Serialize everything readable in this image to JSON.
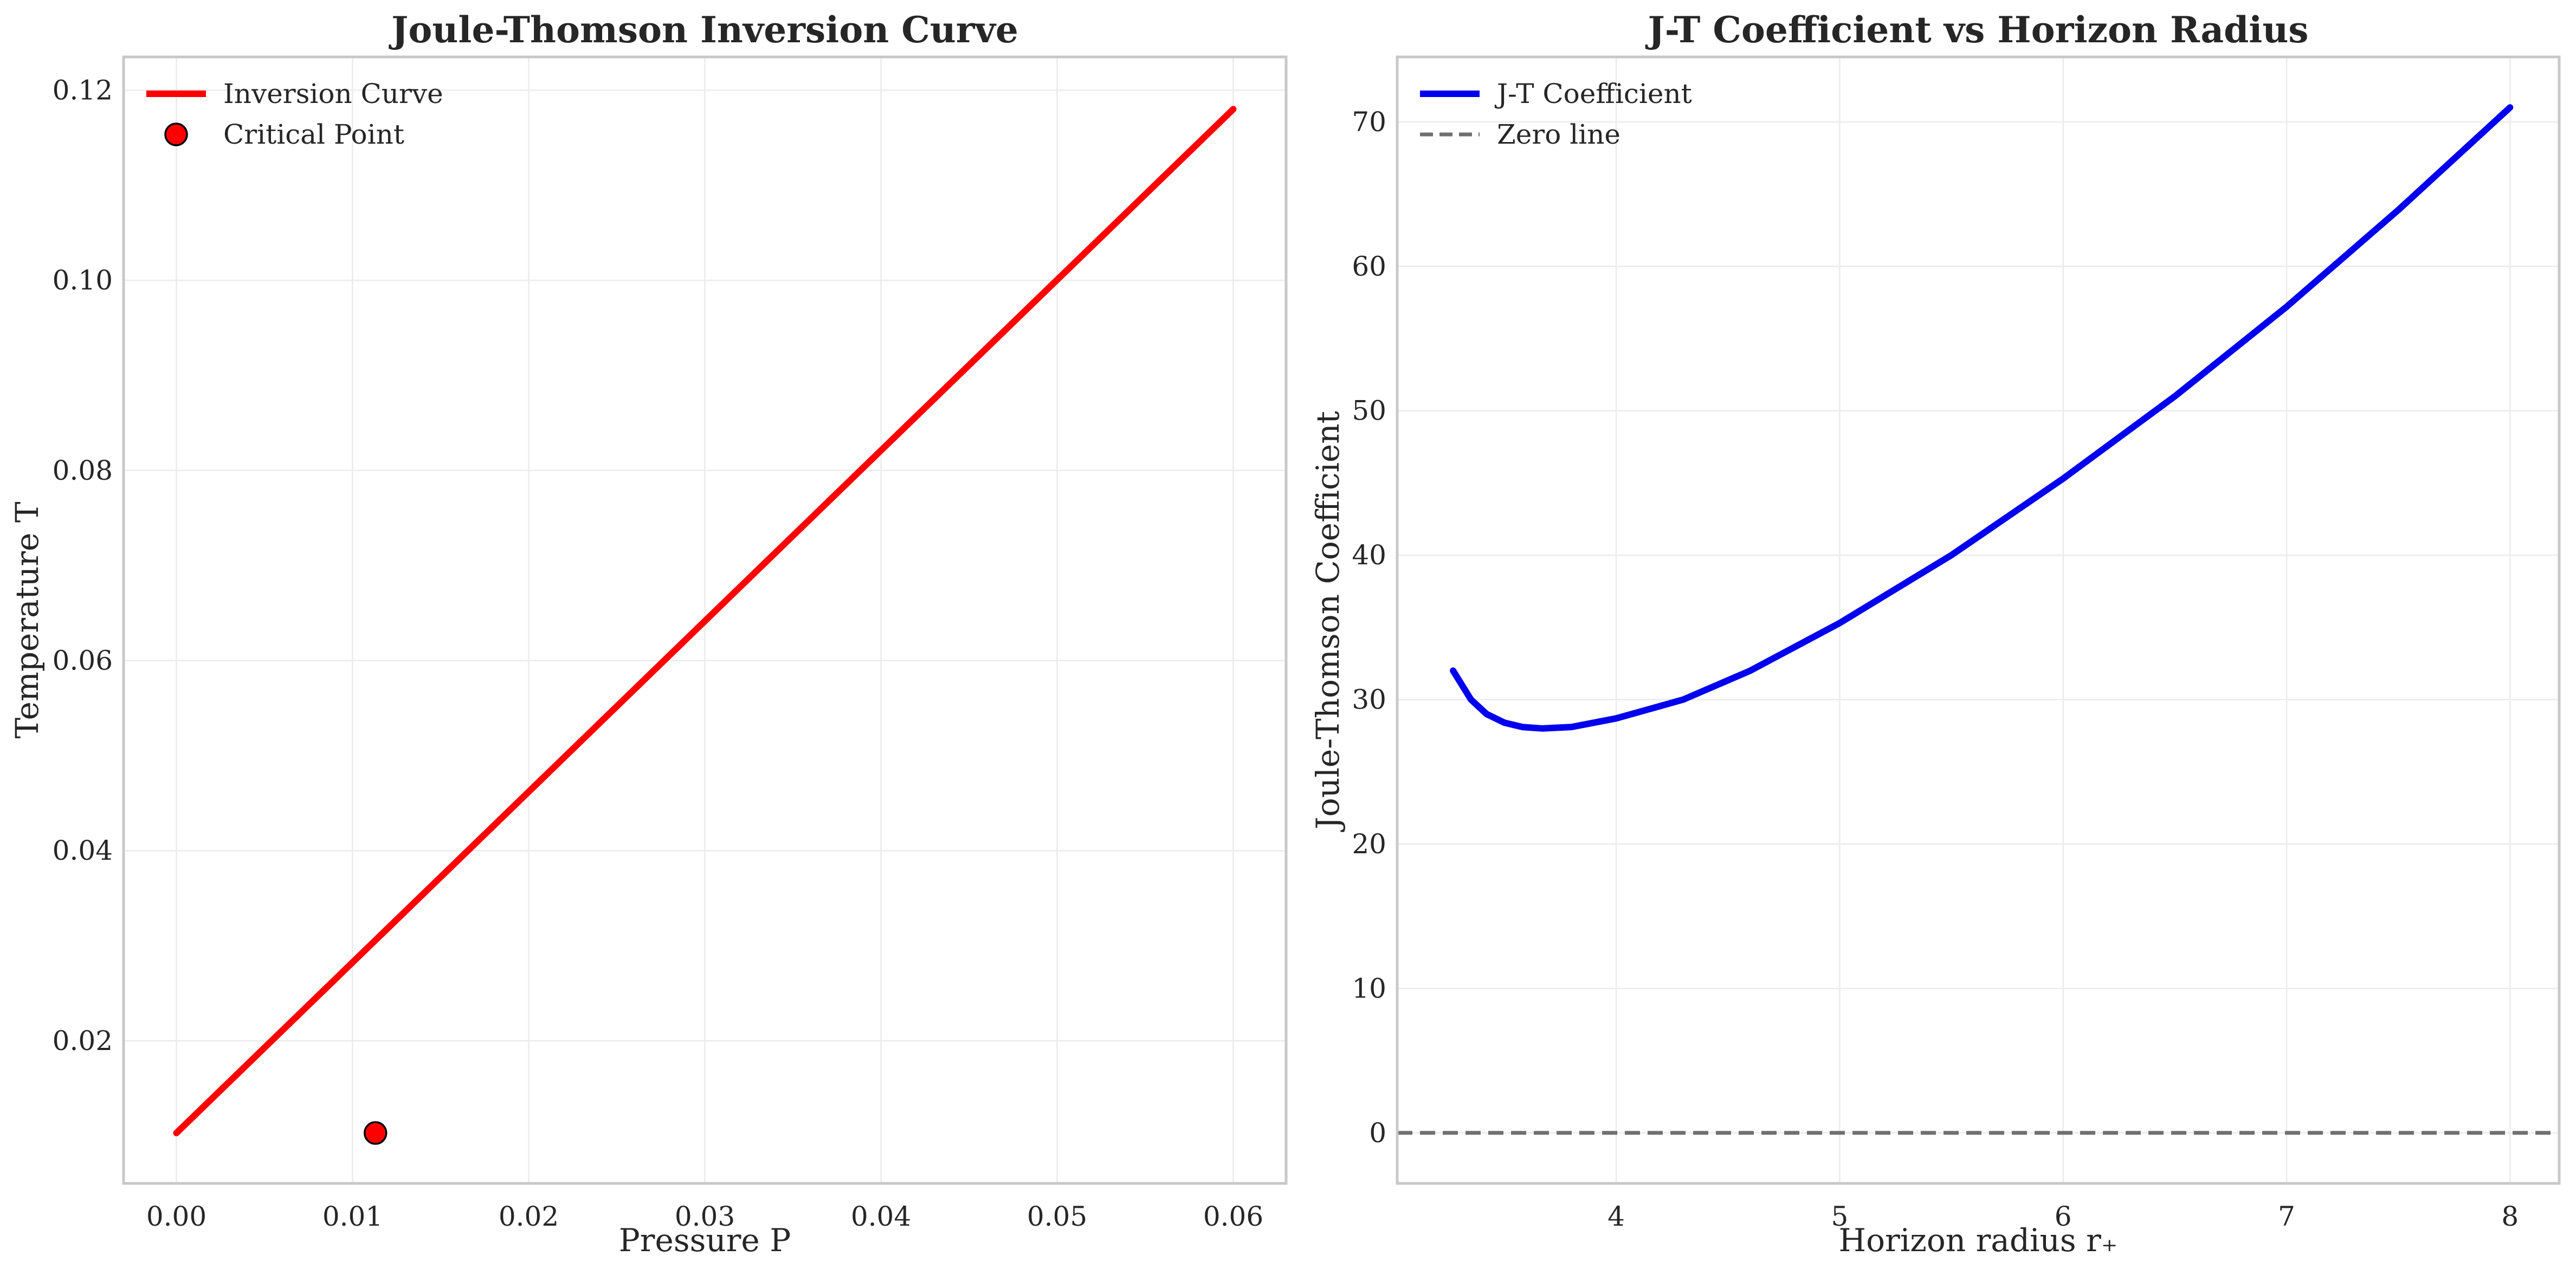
{
  "chart_data": [
    {
      "type": "line",
      "title": "Joule-Thomson Inversion Curve",
      "xlabel": "Pressure P",
      "ylabel": "Temperature T",
      "xlim": [
        -0.003,
        0.063
      ],
      "ylim": [
        0.005,
        0.1235
      ],
      "xticks": [
        0.0,
        0.01,
        0.02,
        0.03,
        0.04,
        0.05,
        0.06
      ],
      "yticks": [
        0.02,
        0.04,
        0.06,
        0.08,
        0.1,
        0.12
      ],
      "x_tick_decimals": 2,
      "y_tick_decimals": 2,
      "grid": true,
      "legend_placement": "upper-left",
      "series": [
        {
          "name": "Inversion Curve",
          "kind": "line",
          "color": "#ff0000",
          "x": [
            0.0,
            0.06
          ],
          "y": [
            0.0103,
            0.118
          ]
        }
      ],
      "points": [
        {
          "name": "Critical Point",
          "kind": "marker",
          "color": "#ff0000",
          "edge": "#000000",
          "x": 0.0113,
          "y": 0.0103
        }
      ]
    },
    {
      "type": "line",
      "title": "J-T Coefficient vs Horizon Radius",
      "xlabel": "Horizon radius r₊",
      "ylabel": "Joule-Thomson Coefficient",
      "xlim": [
        3.02,
        8.22
      ],
      "ylim": [
        -3.5,
        74.5
      ],
      "xticks": [
        4,
        5,
        6,
        7,
        8
      ],
      "yticks": [
        0,
        10,
        20,
        30,
        40,
        50,
        60,
        70
      ],
      "x_tick_decimals": 0,
      "y_tick_decimals": 0,
      "grid": true,
      "legend_placement": "upper-left",
      "series": [
        {
          "name": "J-T Coefficient",
          "kind": "line",
          "color": "#0000ee",
          "x": [
            3.27,
            3.35,
            3.42,
            3.5,
            3.58,
            3.67,
            3.8,
            4.0,
            4.3,
            4.6,
            5.0,
            5.5,
            6.0,
            6.5,
            7.0,
            7.5,
            8.0
          ],
          "y": [
            32.0,
            30.0,
            29.0,
            28.4,
            28.1,
            28.0,
            28.1,
            28.7,
            30.0,
            32.0,
            35.3,
            40.0,
            45.3,
            51.0,
            57.2,
            63.9,
            71.0
          ]
        },
        {
          "name": "Zero line",
          "kind": "hline",
          "color": "#707070",
          "dashed": true,
          "y": 0
        }
      ]
    }
  ]
}
